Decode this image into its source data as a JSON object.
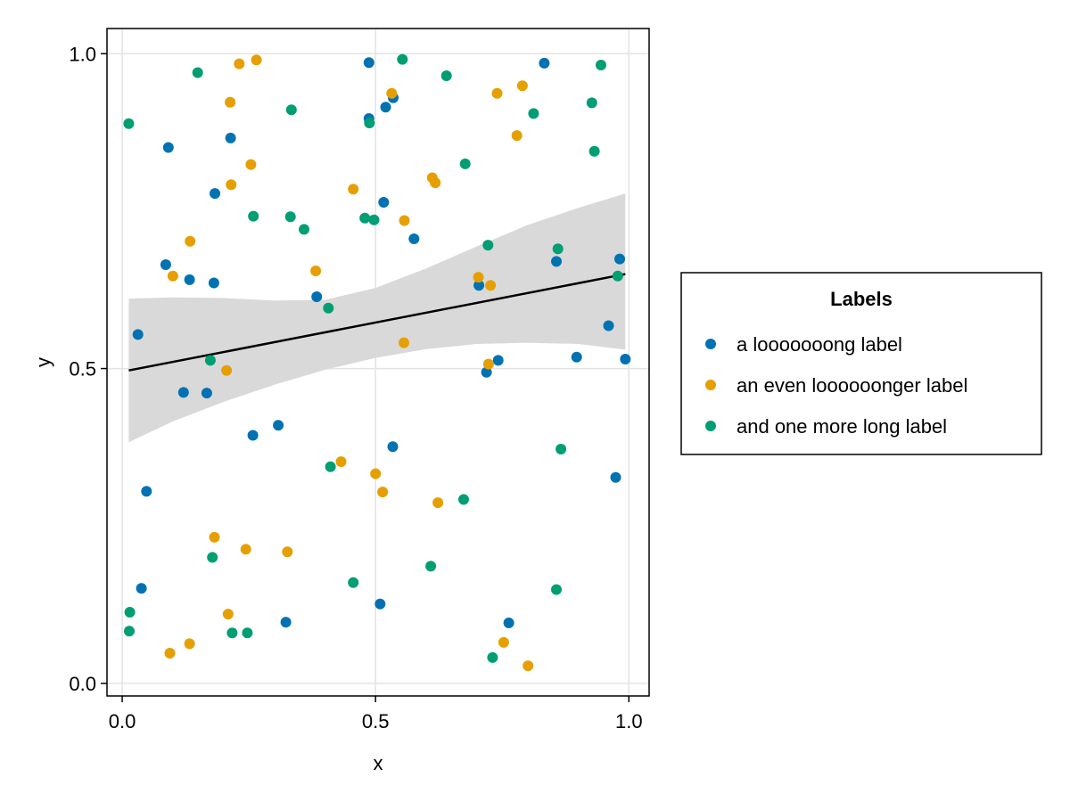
{
  "chart_data": {
    "type": "scatter",
    "title": "",
    "xlabel": "x",
    "ylabel": "y",
    "xlim": [
      -0.03,
      1.04
    ],
    "ylim": [
      -0.02,
      1.04
    ],
    "x_ticks": [
      0.0,
      0.5,
      1.0
    ],
    "y_ticks": [
      0.0,
      0.5,
      1.0
    ],
    "x_tick_labels": [
      "0.0",
      "0.5",
      "1.0"
    ],
    "y_tick_labels": [
      "0.0",
      "0.5",
      "1.0"
    ],
    "grid": true,
    "legend": {
      "title": "Labels",
      "placement": "right"
    },
    "series": [
      {
        "name": "a looooooong label",
        "color": "#0072B2",
        "points": [
          [
            0.487,
            0.986
          ],
          [
            0.833,
            0.985
          ],
          [
            0.535,
            0.93
          ],
          [
            0.52,
            0.915
          ],
          [
            0.487,
            0.897
          ],
          [
            0.091,
            0.851
          ],
          [
            0.214,
            0.866
          ],
          [
            0.183,
            0.778
          ],
          [
            0.516,
            0.764
          ],
          [
            0.576,
            0.706
          ],
          [
            0.086,
            0.665
          ],
          [
            0.857,
            0.67
          ],
          [
            0.982,
            0.674
          ],
          [
            0.133,
            0.641
          ],
          [
            0.181,
            0.636
          ],
          [
            0.704,
            0.632
          ],
          [
            0.384,
            0.614
          ],
          [
            0.031,
            0.554
          ],
          [
            0.96,
            0.568
          ],
          [
            0.897,
            0.518
          ],
          [
            0.742,
            0.513
          ],
          [
            0.993,
            0.515
          ],
          [
            0.719,
            0.494
          ],
          [
            0.121,
            0.462
          ],
          [
            0.167,
            0.461
          ],
          [
            0.308,
            0.41
          ],
          [
            0.258,
            0.394
          ],
          [
            0.534,
            0.376
          ],
          [
            0.974,
            0.327
          ],
          [
            0.048,
            0.305
          ],
          [
            0.038,
            0.151
          ],
          [
            0.509,
            0.126
          ],
          [
            0.763,
            0.096
          ],
          [
            0.323,
            0.097
          ]
        ]
      },
      {
        "name": "an even loooooonger label",
        "color": "#E69F00",
        "points": [
          [
            0.265,
            0.99
          ],
          [
            0.231,
            0.984
          ],
          [
            0.532,
            0.937
          ],
          [
            0.74,
            0.937
          ],
          [
            0.79,
            0.949
          ],
          [
            0.213,
            0.923
          ],
          [
            0.779,
            0.87
          ],
          [
            0.254,
            0.824
          ],
          [
            0.612,
            0.803
          ],
          [
            0.618,
            0.795
          ],
          [
            0.215,
            0.792
          ],
          [
            0.456,
            0.785
          ],
          [
            0.557,
            0.735
          ],
          [
            0.134,
            0.702
          ],
          [
            0.382,
            0.655
          ],
          [
            0.1,
            0.647
          ],
          [
            0.703,
            0.645
          ],
          [
            0.727,
            0.632
          ],
          [
            0.556,
            0.541
          ],
          [
            0.723,
            0.507
          ],
          [
            0.206,
            0.497
          ],
          [
            0.432,
            0.352
          ],
          [
            0.5,
            0.333
          ],
          [
            0.514,
            0.304
          ],
          [
            0.623,
            0.287
          ],
          [
            0.182,
            0.232
          ],
          [
            0.244,
            0.213
          ],
          [
            0.326,
            0.209
          ],
          [
            0.209,
            0.11
          ],
          [
            0.133,
            0.063
          ],
          [
            0.753,
            0.065
          ],
          [
            0.094,
            0.048
          ],
          [
            0.801,
            0.028
          ]
        ]
      },
      {
        "name": "and one more long label",
        "color": "#009E73",
        "points": [
          [
            0.553,
            0.991
          ],
          [
            0.945,
            0.982
          ],
          [
            0.149,
            0.97
          ],
          [
            0.64,
            0.965
          ],
          [
            0.334,
            0.911
          ],
          [
            0.927,
            0.922
          ],
          [
            0.013,
            0.889
          ],
          [
            0.488,
            0.89
          ],
          [
            0.812,
            0.905
          ],
          [
            0.932,
            0.845
          ],
          [
            0.677,
            0.825
          ],
          [
            0.259,
            0.742
          ],
          [
            0.332,
            0.741
          ],
          [
            0.479,
            0.739
          ],
          [
            0.497,
            0.736
          ],
          [
            0.359,
            0.721
          ],
          [
            0.722,
            0.696
          ],
          [
            0.86,
            0.69
          ],
          [
            0.978,
            0.647
          ],
          [
            0.407,
            0.596
          ],
          [
            0.174,
            0.513
          ],
          [
            0.411,
            0.344
          ],
          [
            0.866,
            0.372
          ],
          [
            0.674,
            0.292
          ],
          [
            0.178,
            0.2
          ],
          [
            0.609,
            0.186
          ],
          [
            0.456,
            0.16
          ],
          [
            0.857,
            0.149
          ],
          [
            0.015,
            0.113
          ],
          [
            0.014,
            0.083
          ],
          [
            0.217,
            0.08
          ],
          [
            0.247,
            0.08
          ],
          [
            0.731,
            0.041
          ]
        ]
      }
    ],
    "fit_line": {
      "x": [
        0.013,
        0.993
      ],
      "y": [
        0.497,
        0.65
      ],
      "color": "#000000"
    },
    "confidence_band": {
      "x": [
        0.013,
        0.1,
        0.2,
        0.3,
        0.4,
        0.5,
        0.6,
        0.7,
        0.8,
        0.9,
        0.993
      ],
      "lower": [
        0.383,
        0.416,
        0.447,
        0.474,
        0.498,
        0.517,
        0.531,
        0.539,
        0.541,
        0.539,
        0.53
      ],
      "upper": [
        0.611,
        0.613,
        0.612,
        0.608,
        0.609,
        0.628,
        0.659,
        0.694,
        0.728,
        0.755,
        0.778
      ],
      "color": "#d9d9d9"
    }
  }
}
